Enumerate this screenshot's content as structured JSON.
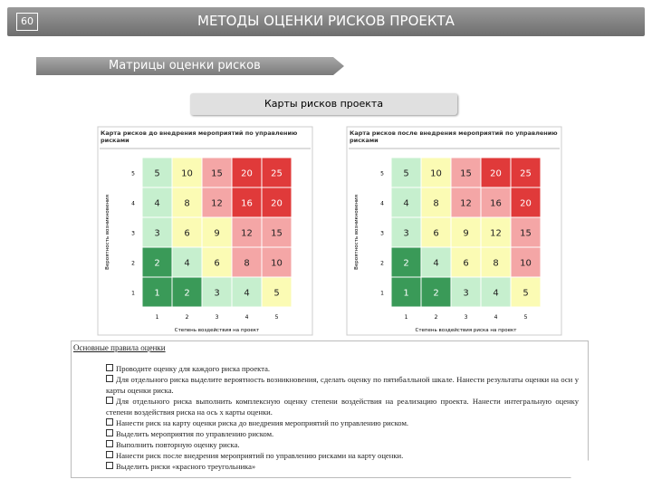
{
  "header": {
    "page_number": "60",
    "title": "МЕТОДЫ ОЦЕНКИ РИСКОВ ПРОЕКТА"
  },
  "section": "Матрицы оценки рисков",
  "subtitle": "Карты рисков проекта",
  "matrices": [
    {
      "title": "Карта рисков до внедрения мероприятий по управлению рисками",
      "y_label": "Вероятность возникновения",
      "x_label": "Степень воздействия на проект",
      "y_ticks": [
        5,
        4,
        3,
        2,
        1
      ],
      "x_ticks": [
        1,
        2,
        3,
        4,
        5
      ],
      "cells": [
        [
          5,
          10,
          15,
          20,
          25
        ],
        [
          4,
          8,
          12,
          16,
          20
        ],
        [
          3,
          6,
          9,
          12,
          15
        ],
        [
          2,
          4,
          6,
          8,
          10
        ],
        [
          1,
          2,
          3,
          4,
          5
        ]
      ],
      "colors": [
        [
          "#c6efce",
          "#fbfbb4",
          "#f4a6a6",
          "#e03a3a",
          "#e03a3a"
        ],
        [
          "#c6efce",
          "#fbfbb4",
          "#f4a6a6",
          "#e03a3a",
          "#e03a3a"
        ],
        [
          "#c6efce",
          "#fbfbb4",
          "#fbfbb4",
          "#f4a6a6",
          "#f4a6a6"
        ],
        [
          "#3a9a58",
          "#c6efce",
          "#fbfbb4",
          "#f4a6a6",
          "#f4a6a6"
        ],
        [
          "#3a9a58",
          "#3a9a58",
          "#c6efce",
          "#c6efce",
          "#fbfbb4"
        ]
      ]
    },
    {
      "title": "Карта рисков после внедрения мероприятий по управлению рисками",
      "y_label": "Вероятность возникновения",
      "x_label": "Степень воздействия риска на проект",
      "y_ticks": [
        5,
        4,
        3,
        2,
        1
      ],
      "x_ticks": [
        1,
        2,
        3,
        4,
        5
      ],
      "cells": [
        [
          5,
          10,
          15,
          20,
          25
        ],
        [
          4,
          8,
          12,
          16,
          20
        ],
        [
          3,
          6,
          9,
          12,
          15
        ],
        [
          2,
          4,
          6,
          8,
          10
        ],
        [
          1,
          2,
          3,
          4,
          5
        ]
      ],
      "colors": [
        [
          "#c6efce",
          "#fbfbb4",
          "#f4a6a6",
          "#e03a3a",
          "#e03a3a"
        ],
        [
          "#c6efce",
          "#fbfbb4",
          "#f4a6a6",
          "#f4a6a6",
          "#e03a3a"
        ],
        [
          "#c6efce",
          "#fbfbb4",
          "#fbfbb4",
          "#fbfbb4",
          "#f4a6a6"
        ],
        [
          "#3a9a58",
          "#c6efce",
          "#fbfbb4",
          "#fbfbb4",
          "#f4a6a6"
        ],
        [
          "#3a9a58",
          "#3a9a58",
          "#c6efce",
          "#c6efce",
          "#fbfbb4"
        ]
      ]
    }
  ],
  "rules": {
    "heading": "Основные правила оценки",
    "items": [
      "Проводите оценку для каждого риска проекта.",
      "Для отдельного риска выделите вероятность возникновения, сделать оценку по пятибалльной шкале. Нанести результаты оценки на оси у карты оценки риска.",
      "Для отдельного риска выполнить комплексную оценку степени воздействия на реализацию проекта. Нанести интегральную оценку степени воздействия риска на ось х карты оценки.",
      "Нанести риск на карту оценки риска до внедрения мероприятий по управлению риском.",
      "Выделить мероприятия по управлению риском.",
      "Выполнить повторную оценку риска.",
      "Нанести риск после внедрения мероприятий по управлению рисками на карту оценки.",
      "Выделить риски «красного треугольника»"
    ]
  }
}
